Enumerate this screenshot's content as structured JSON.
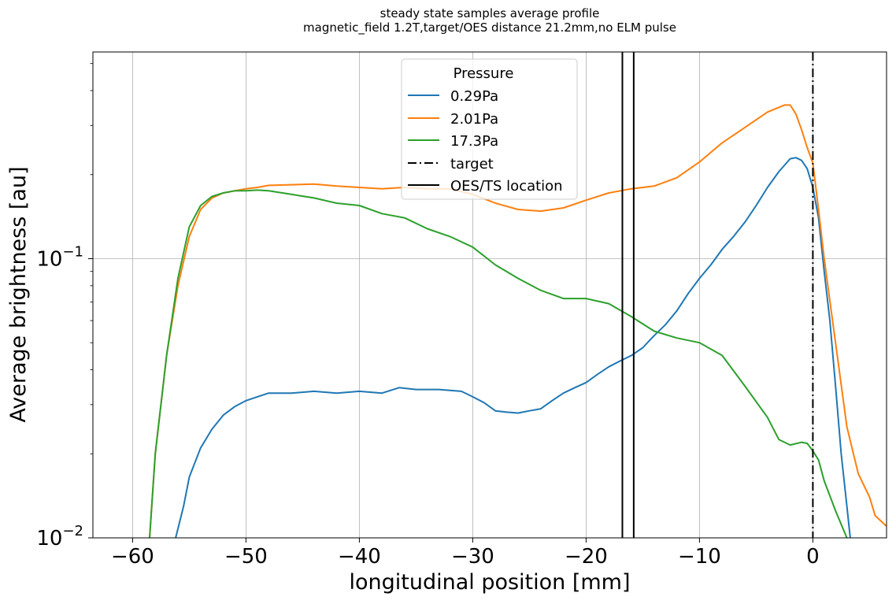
{
  "chart_data": {
    "type": "line",
    "title": "steady state samples average profile",
    "subtitle": "magnetic_field 1.2T,target/OES distance 21.2mm,no ELM pulse",
    "xlabel": "longitudinal position [mm]",
    "ylabel": "Average brightness [au]",
    "xlim": [
      -63.5,
      6.5
    ],
    "ylim": [
      0.01,
      0.55
    ],
    "yscale": "log",
    "grid": true,
    "x_ticks": [
      -60,
      -50,
      -40,
      -30,
      -20,
      -10,
      0
    ],
    "x_tick_labels": [
      "−60",
      "−50",
      "−40",
      "−30",
      "−20",
      "−10",
      "0"
    ],
    "y_ticks": [
      {
        "value": 0.1,
        "base": "10",
        "exp": "−1"
      },
      {
        "value": 0.01,
        "base": "10",
        "exp": "−2"
      }
    ],
    "legend": {
      "title": "Pressure",
      "placement": "top-center",
      "entries": [
        "0.29Pa",
        "2.01Pa",
        "17.3Pa",
        "target",
        "OES/TS location"
      ]
    },
    "series": [
      {
        "name": "0.29Pa",
        "color": "#1f77b4",
        "x": [
          -56.2,
          -55.5,
          -55,
          -54,
          -53,
          -52,
          -51,
          -50,
          -49,
          -48,
          -46,
          -44,
          -42,
          -40,
          -38,
          -36.5,
          -35,
          -33,
          -31,
          -30,
          -29,
          -28,
          -27,
          -26,
          -25,
          -24,
          -23,
          -22,
          -21,
          -20,
          -19,
          -18,
          -17,
          -16,
          -15,
          -14,
          -13,
          -12,
          -11,
          -10,
          -9,
          -8,
          -7,
          -6,
          -5,
          -4,
          -3,
          -2,
          -1.5,
          -1,
          -0.5,
          0,
          0.5,
          1,
          1.5,
          2,
          2.5,
          3,
          3.3
        ],
        "y": [
          0.01,
          0.013,
          0.0165,
          0.021,
          0.0245,
          0.0275,
          0.0295,
          0.031,
          0.032,
          0.033,
          0.033,
          0.0335,
          0.033,
          0.0335,
          0.033,
          0.0345,
          0.034,
          0.034,
          0.0335,
          0.032,
          0.0305,
          0.0285,
          0.0282,
          0.028,
          0.0285,
          0.029,
          0.031,
          0.033,
          0.0345,
          0.036,
          0.0385,
          0.041,
          0.043,
          0.045,
          0.048,
          0.053,
          0.058,
          0.065,
          0.075,
          0.085,
          0.095,
          0.108,
          0.12,
          0.135,
          0.155,
          0.18,
          0.205,
          0.228,
          0.23,
          0.225,
          0.21,
          0.18,
          0.14,
          0.09,
          0.06,
          0.035,
          0.02,
          0.013,
          0.01
        ]
      },
      {
        "name": "2.01Pa",
        "color": "#ff7f0e",
        "x": [
          -58.5,
          -58,
          -57,
          -56,
          -55,
          -54,
          -53,
          -52,
          -51,
          -50,
          -49,
          -48,
          -46,
          -44,
          -42,
          -40,
          -38,
          -36,
          -34,
          -32,
          -30,
          -28,
          -26,
          -24,
          -22,
          -20,
          -18,
          -16,
          -14,
          -12,
          -10,
          -8,
          -6,
          -4,
          -2.5,
          -2,
          -1.5,
          -1,
          -0.5,
          0,
          0.5,
          1,
          2,
          3,
          4,
          5,
          5.5,
          6.5
        ],
        "y": [
          0.01,
          0.02,
          0.045,
          0.08,
          0.12,
          0.15,
          0.165,
          0.172,
          0.175,
          0.178,
          0.18,
          0.183,
          0.184,
          0.185,
          0.182,
          0.18,
          0.178,
          0.18,
          0.178,
          0.178,
          0.17,
          0.158,
          0.15,
          0.148,
          0.152,
          0.162,
          0.172,
          0.178,
          0.182,
          0.195,
          0.222,
          0.26,
          0.295,
          0.335,
          0.355,
          0.355,
          0.33,
          0.29,
          0.25,
          0.22,
          0.15,
          0.1,
          0.05,
          0.025,
          0.017,
          0.014,
          0.012,
          0.011
        ]
      },
      {
        "name": "17.3Pa",
        "color": "#2ca02c",
        "x": [
          -58.5,
          -58,
          -57,
          -56,
          -55,
          -54,
          -53,
          -52,
          -51,
          -50,
          -49,
          -48,
          -46,
          -44,
          -42,
          -40,
          -38,
          -36,
          -34,
          -32,
          -30,
          -28,
          -26,
          -24,
          -22,
          -20,
          -18,
          -16,
          -14,
          -12,
          -10,
          -8,
          -6,
          -4,
          -3,
          -2,
          -1,
          -0.5,
          0,
          0.5,
          1,
          2,
          3
        ],
        "y": [
          0.01,
          0.02,
          0.045,
          0.085,
          0.13,
          0.155,
          0.167,
          0.172,
          0.175,
          0.175,
          0.176,
          0.175,
          0.17,
          0.165,
          0.158,
          0.155,
          0.145,
          0.14,
          0.128,
          0.12,
          0.11,
          0.095,
          0.085,
          0.077,
          0.072,
          0.072,
          0.069,
          0.062,
          0.055,
          0.052,
          0.05,
          0.045,
          0.035,
          0.027,
          0.0225,
          0.0215,
          0.022,
          0.0218,
          0.0205,
          0.019,
          0.016,
          0.0125,
          0.01
        ]
      }
    ],
    "vlines": [
      {
        "name": "target",
        "x": 0,
        "style": "dashdot",
        "color": "#000000"
      },
      {
        "name": "OES/TS location",
        "x": -16.8,
        "style": "solid",
        "color": "#000000"
      },
      {
        "name": "OES/TS location",
        "x": -15.8,
        "style": "solid",
        "color": "#000000"
      }
    ]
  }
}
